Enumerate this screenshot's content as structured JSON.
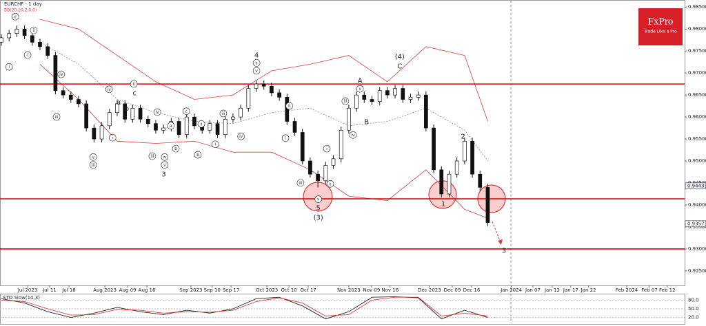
{
  "brand": {
    "name": "FxPro",
    "tagline": "Trade Like a Pro"
  },
  "chart_data": [
    {
      "type": "candlestick",
      "title": "EURCHF - 1 day",
      "subtitle": "BB(20,20,2,0,0)",
      "x": [
        0,
        2,
        4,
        6,
        8,
        10,
        12,
        14,
        16,
        18,
        20,
        22,
        24,
        26,
        28,
        30,
        32,
        34,
        36,
        38,
        40,
        42,
        44,
        46,
        48,
        50,
        52,
        54,
        56,
        58,
        60,
        62,
        64,
        66,
        68,
        70,
        72,
        74,
        76,
        78,
        80,
        82,
        84,
        86,
        88,
        90,
        92,
        94,
        96,
        98,
        100,
        102,
        104,
        106,
        108,
        110,
        112,
        114,
        116,
        118,
        120,
        122,
        124,
        126
      ],
      "open": [
        0.977,
        0.978,
        0.979,
        0.98,
        0.9785,
        0.977,
        0.976,
        0.974,
        0.966,
        0.965,
        0.964,
        0.963,
        0.9575,
        0.955,
        0.958,
        0.961,
        0.963,
        0.9595,
        0.962,
        0.9595,
        0.9585,
        0.957,
        0.9575,
        0.959,
        0.956,
        0.96,
        0.958,
        0.957,
        0.9585,
        0.956,
        0.9595,
        0.96,
        0.962,
        0.9665,
        0.9675,
        0.967,
        0.9655,
        0.9645,
        0.959,
        0.9565,
        0.95,
        0.947,
        0.9455,
        0.949,
        0.9505,
        0.957,
        0.962,
        0.965,
        0.964,
        0.9635,
        0.966,
        0.965,
        0.9665,
        0.964,
        0.9645,
        0.965,
        0.9575,
        0.948,
        0.9425,
        0.947,
        0.95,
        0.9545,
        0.947,
        0.944
      ],
      "high": [
        0.9788,
        0.9798,
        0.9808,
        0.9808,
        0.9793,
        0.9778,
        0.9768,
        0.9748,
        0.9668,
        0.9658,
        0.9648,
        0.9638,
        0.9583,
        0.9588,
        0.9618,
        0.9638,
        0.9638,
        0.9628,
        0.9628,
        0.9603,
        0.9593,
        0.9583,
        0.9598,
        0.9598,
        0.9608,
        0.9608,
        0.9588,
        0.9593,
        0.9593,
        0.9603,
        0.9608,
        0.9628,
        0.9673,
        0.9683,
        0.9683,
        0.9678,
        0.9663,
        0.9653,
        0.9598,
        0.9573,
        0.9508,
        0.9478,
        0.9498,
        0.9513,
        0.9578,
        0.9628,
        0.9658,
        0.9658,
        0.9648,
        0.9668,
        0.9668,
        0.9673,
        0.9673,
        0.9653,
        0.9658,
        0.9658,
        0.9583,
        0.9488,
        0.9478,
        0.9508,
        0.9553,
        0.9553,
        0.9478,
        0.9448
      ],
      "low": [
        0.9762,
        0.9772,
        0.9782,
        0.9777,
        0.9762,
        0.9752,
        0.9732,
        0.9652,
        0.9642,
        0.9632,
        0.9622,
        0.9567,
        0.9542,
        0.9542,
        0.9572,
        0.9602,
        0.9587,
        0.9587,
        0.9587,
        0.9577,
        0.9562,
        0.9562,
        0.9567,
        0.9552,
        0.9552,
        0.9572,
        0.9562,
        0.9562,
        0.9552,
        0.9552,
        0.9587,
        0.9592,
        0.9612,
        0.9657,
        0.9662,
        0.9647,
        0.9637,
        0.9582,
        0.9557,
        0.9492,
        0.9462,
        0.944,
        0.9447,
        0.9482,
        0.9497,
        0.9562,
        0.9612,
        0.9632,
        0.9627,
        0.9627,
        0.9642,
        0.9642,
        0.9632,
        0.9632,
        0.9637,
        0.9567,
        0.9472,
        0.9417,
        0.9417,
        0.9462,
        0.9492,
        0.9462,
        0.9432,
        0.9352
      ],
      "close": [
        0.978,
        0.979,
        0.98,
        0.9785,
        0.977,
        0.976,
        0.974,
        0.966,
        0.965,
        0.964,
        0.963,
        0.9575,
        0.955,
        0.958,
        0.961,
        0.963,
        0.9595,
        0.962,
        0.9595,
        0.9585,
        0.957,
        0.9575,
        0.959,
        0.956,
        0.96,
        0.958,
        0.957,
        0.9585,
        0.956,
        0.9595,
        0.96,
        0.962,
        0.9665,
        0.9675,
        0.967,
        0.9655,
        0.9645,
        0.959,
        0.9565,
        0.95,
        0.947,
        0.9455,
        0.949,
        0.9505,
        0.957,
        0.962,
        0.965,
        0.964,
        0.9635,
        0.966,
        0.965,
        0.9665,
        0.964,
        0.9645,
        0.965,
        0.9575,
        0.948,
        0.9425,
        0.947,
        0.95,
        0.9545,
        0.947,
        0.944,
        0.936
      ],
      "up_color": "#ffffff",
      "down_color": "#111111",
      "bollinger": {
        "color": "#e03a3a",
        "middle_color": "#888888",
        "x": [
          10,
          20,
          30,
          40,
          50,
          60,
          70,
          80,
          90,
          100,
          110,
          120,
          126
        ],
        "upper": [
          0.9822,
          0.98,
          0.974,
          0.968,
          0.964,
          0.965,
          0.9705,
          0.972,
          0.974,
          0.968,
          0.976,
          0.974,
          0.959
        ],
        "middle": [
          0.977,
          0.972,
          0.964,
          0.961,
          0.959,
          0.9585,
          0.961,
          0.962,
          0.958,
          0.959,
          0.962,
          0.957,
          0.95
        ],
        "lower": [
          0.972,
          0.964,
          0.9545,
          0.954,
          0.9545,
          0.952,
          0.952,
          0.948,
          0.942,
          0.941,
          0.948,
          0.939,
          0.937
        ]
      },
      "levels": {
        "color": "#e00000",
        "values": [
          0.9675,
          0.9414,
          0.93
        ]
      },
      "price_labels": [
        0.94433,
        0.93573
      ],
      "xlim": [
        0,
        177
      ],
      "ylim": [
        0.9217,
        0.9866
      ],
      "yticks": [
        {
          "value": 0.985,
          "label": "0.98500"
        },
        {
          "value": 0.98,
          "label": "0.98000"
        },
        {
          "value": 0.975,
          "label": "0.97500"
        },
        {
          "value": 0.97,
          "label": "0.97000"
        },
        {
          "value": 0.965,
          "label": "0.96500"
        },
        {
          "value": 0.96,
          "label": "0.96000"
        },
        {
          "value": 0.955,
          "label": "0.95500"
        },
        {
          "value": 0.95,
          "label": "0.95000"
        },
        {
          "value": 0.945,
          "label": "0.94500"
        },
        {
          "value": 0.94,
          "label": "0.94000"
        },
        {
          "value": 0.935,
          "label": "0.93500"
        },
        {
          "value": 0.93,
          "label": "0.93000"
        },
        {
          "value": 0.925,
          "label": "0.92500"
        }
      ],
      "xticks": [
        {
          "value": 6.8,
          "label": "Jul 2023"
        },
        {
          "value": 12.5,
          "label": "Jul 11"
        },
        {
          "value": 17.5,
          "label": "Jul 18"
        },
        {
          "value": 26.8,
          "label": "Aug 2023"
        },
        {
          "value": 32.7,
          "label": "Aug 09"
        },
        {
          "value": 37.7,
          "label": "Aug 16"
        },
        {
          "value": 49.1,
          "label": "Sep 2023"
        },
        {
          "value": 54.6,
          "label": "Sep 10"
        },
        {
          "value": 59.5,
          "label": "Sep 17"
        },
        {
          "value": 68.8,
          "label": "Oct 2023"
        },
        {
          "value": 74.5,
          "label": "Oct 10"
        },
        {
          "value": 79.5,
          "label": "Oct 17"
        },
        {
          "value": 90,
          "label": "Nov 2023"
        },
        {
          "value": 95.9,
          "label": "Nov 09"
        },
        {
          "value": 100.7,
          "label": "Nov 16"
        },
        {
          "value": 110.9,
          "label": "Dec 2023"
        },
        {
          "value": 116.8,
          "label": "Dec 09"
        },
        {
          "value": 121.8,
          "label": "Dec 16"
        },
        {
          "value": 132.1,
          "label": "Jan 2024"
        },
        {
          "value": 137.7,
          "label": "Jan 07"
        },
        {
          "value": 142.7,
          "label": "Jan 12"
        },
        {
          "value": 147.5,
          "label": "Jan 17"
        },
        {
          "value": 152.1,
          "label": "Jan 22"
        },
        {
          "value": 162,
          "label": "Feb 2024"
        },
        {
          "value": 167.9,
          "label": "Feb 07"
        },
        {
          "value": 172.5,
          "label": "Feb 12"
        }
      ],
      "annotations": [
        {
          "text": "i",
          "x": 2,
          "y": 0.9714,
          "circled": true
        },
        {
          "text": "ii",
          "x": 3.6,
          "y": 0.9828,
          "circled": true
        },
        {
          "text": "i",
          "x": 6.8,
          "y": 0.9741,
          "circled": true
        },
        {
          "text": "ii",
          "x": 8.4,
          "y": 0.9797,
          "circled": true
        },
        {
          "text": "iv",
          "x": 15.5,
          "y": 0.9697,
          "circled": true
        },
        {
          "text": "iii",
          "x": 14.3,
          "y": 0.96,
          "circled": true
        },
        {
          "text": "v",
          "x": 23.8,
          "y": 0.9509,
          "circled": true
        },
        {
          "text": "iii",
          "x": 23.8,
          "y": 0.9491,
          "circled": true
        },
        {
          "text": "iv",
          "x": 27.9,
          "y": 0.9663,
          "circled": true
        },
        {
          "text": "i",
          "x": 28.8,
          "y": 0.9553,
          "circled": true
        },
        {
          "text": "a",
          "x": 30.4,
          "y": 0.9634,
          "circled": false
        },
        {
          "text": "b",
          "x": 32.5,
          "y": 0.962,
          "circled": false
        },
        {
          "text": "c",
          "x": 34.5,
          "y": 0.9655,
          "circled": false
        },
        {
          "text": "ii",
          "x": 34.3,
          "y": 0.9675,
          "circled": true
        },
        {
          "text": "iv",
          "x": 40.4,
          "y": 0.9611,
          "circled": true
        },
        {
          "text": "iii",
          "x": 39.1,
          "y": 0.9511,
          "circled": true
        },
        {
          "text": "a",
          "x": 43.9,
          "y": 0.958,
          "circled": true
        },
        {
          "text": "b",
          "x": 45.2,
          "y": 0.9528,
          "circled": true
        },
        {
          "text": "c",
          "x": 47.9,
          "y": 0.9613,
          "circled": true
        },
        {
          "text": "iv",
          "x": 42.3,
          "y": 0.9509,
          "circled": true
        },
        {
          "text": "v",
          "x": 42.3,
          "y": 0.9491,
          "circled": true
        },
        {
          "text": "3",
          "x": 42.1,
          "y": 0.947,
          "circled": false
        },
        {
          "text": "ii",
          "x": 51.8,
          "y": 0.9584,
          "circled": true
        },
        {
          "text": "b",
          "x": 50.9,
          "y": 0.9514,
          "circled": true
        },
        {
          "text": "iii",
          "x": 57.5,
          "y": 0.9608,
          "circled": true
        },
        {
          "text": "i",
          "x": 55.4,
          "y": 0.9538,
          "circled": true
        },
        {
          "text": "iv",
          "x": 62.1,
          "y": 0.9556,
          "circled": true
        },
        {
          "text": "4",
          "x": 66.1,
          "y": 0.9741,
          "circled": false
        },
        {
          "text": "c",
          "x": 66.1,
          "y": 0.9723,
          "circled": true
        },
        {
          "text": "v",
          "x": 66.1,
          "y": 0.9705,
          "circled": true
        },
        {
          "text": "ii",
          "x": 74.6,
          "y": 0.9625,
          "circled": true
        },
        {
          "text": "i",
          "x": 73.6,
          "y": 0.9552,
          "circled": true
        },
        {
          "text": "iii",
          "x": 77.5,
          "y": 0.945,
          "circled": true
        },
        {
          "text": "v",
          "x": 82.1,
          "y": 0.9413,
          "circled": true
        },
        {
          "text": "5",
          "x": 82.1,
          "y": 0.9394,
          "circled": false
        },
        {
          "text": "(3)",
          "x": 82.1,
          "y": 0.9372,
          "circled": false
        },
        {
          "text": "i",
          "x": 84.3,
          "y": 0.9528,
          "circled": true
        },
        {
          "text": "ii",
          "x": 85.2,
          "y": 0.9448,
          "circled": true
        },
        {
          "text": "iii",
          "x": 89.1,
          "y": 0.9636,
          "circled": true
        },
        {
          "text": "iv",
          "x": 91.1,
          "y": 0.9559,
          "circled": true
        },
        {
          "text": "A",
          "x": 92.9,
          "y": 0.9683,
          "circled": false
        },
        {
          "text": "v",
          "x": 92.9,
          "y": 0.9664,
          "circled": true
        },
        {
          "text": "B",
          "x": 94.6,
          "y": 0.9589,
          "circled": false
        },
        {
          "text": "(4)",
          "x": 103.2,
          "y": 0.9738,
          "circled": false
        },
        {
          "text": "C",
          "x": 103.2,
          "y": 0.9716,
          "circled": false
        },
        {
          "text": "1",
          "x": 114.5,
          "y": 0.9402,
          "circled": false
        },
        {
          "text": "2",
          "x": 119.6,
          "y": 0.9556,
          "circled": false
        },
        {
          "text": "3",
          "x": 130.2,
          "y": 0.9297,
          "circled": false
        }
      ]
    },
    {
      "type": "line",
      "title": "STO Slow(14,3)",
      "x": [
        0,
        6,
        12,
        18,
        24,
        30,
        36,
        42,
        48,
        54,
        60,
        66,
        72,
        78,
        84,
        90,
        96,
        102,
        108,
        114,
        120,
        126
      ],
      "series": [
        {
          "color": "#222222",
          "values": [
            85,
            70,
            40,
            20,
            35,
            55,
            40,
            30,
            45,
            35,
            50,
            85,
            90,
            60,
            15,
            40,
            90,
            92,
            88,
            15,
            45,
            20
          ]
        },
        {
          "color": "#e03a3a",
          "values": [
            80,
            75,
            50,
            28,
            30,
            48,
            45,
            35,
            40,
            38,
            45,
            75,
            88,
            70,
            25,
            30,
            80,
            90,
            90,
            25,
            35,
            25
          ]
        }
      ],
      "xlim": [
        0,
        177
      ],
      "ylim": [
        0,
        100
      ],
      "yticks": [
        {
          "value": 80,
          "label": "80.0"
        },
        {
          "value": 50,
          "label": "50.0"
        },
        {
          "value": 20,
          "label": "20.0"
        }
      ]
    }
  ]
}
